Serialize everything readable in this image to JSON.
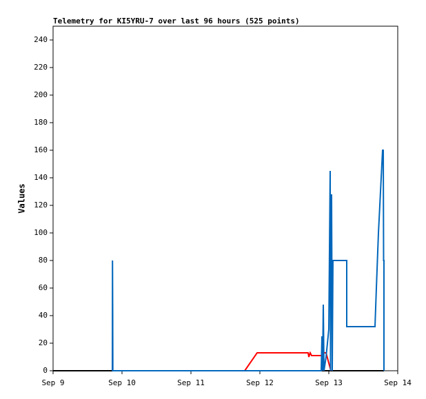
{
  "chart_data": {
    "type": "line",
    "title": "Telemetry for KI5YRU-7 over last 96 hours (525 points)",
    "y_label": "Values",
    "xlim": [
      9,
      14
    ],
    "xticks": [
      {
        "value": 9,
        "label": "Sep 9"
      },
      {
        "value": 10,
        "label": "Sep 10"
      },
      {
        "value": 11,
        "label": "Sep 11"
      },
      {
        "value": 12,
        "label": "Sep 12"
      },
      {
        "value": 13,
        "label": "Sep 13"
      },
      {
        "value": 14,
        "label": "Sep 14"
      }
    ],
    "ylim": [
      0,
      250
    ],
    "yticks": [
      0,
      20,
      40,
      60,
      80,
      100,
      120,
      140,
      160,
      180,
      200,
      220,
      240
    ],
    "grid": false,
    "series": [
      {
        "color": "#000000",
        "x": [
          9.0,
          13.8
        ],
        "values": [
          0,
          0
        ]
      },
      {
        "color": "#ff0000",
        "x": [
          11.78,
          11.96,
          12.7,
          12.71,
          12.73,
          12.75,
          12.8,
          12.9,
          12.92,
          12.96,
          13.03
        ],
        "values": [
          0,
          13,
          13,
          10,
          13,
          11,
          11,
          11,
          13,
          13,
          0
        ]
      },
      {
        "color": "#0066bb",
        "x": [
          9.86,
          9.862,
          9.865,
          9.867,
          9.87,
          12.89,
          12.9,
          12.91,
          12.92,
          12.93,
          12.96,
          13.0,
          13.02,
          13.025,
          13.03,
          13.04,
          13.05,
          13.06,
          13.13,
          13.26,
          13.26,
          13.67,
          13.69,
          13.72,
          13.75,
          13.77,
          13.78,
          13.79,
          13.795,
          13.8,
          13.8
        ],
        "values": [
          0,
          80,
          40,
          0,
          0,
          0,
          25,
          0,
          48,
          0,
          10,
          30,
          145,
          0,
          95,
          128,
          0,
          80,
          80,
          80,
          32,
          32,
          60,
          100,
          130,
          150,
          160,
          160,
          80,
          80,
          0
        ]
      }
    ]
  }
}
